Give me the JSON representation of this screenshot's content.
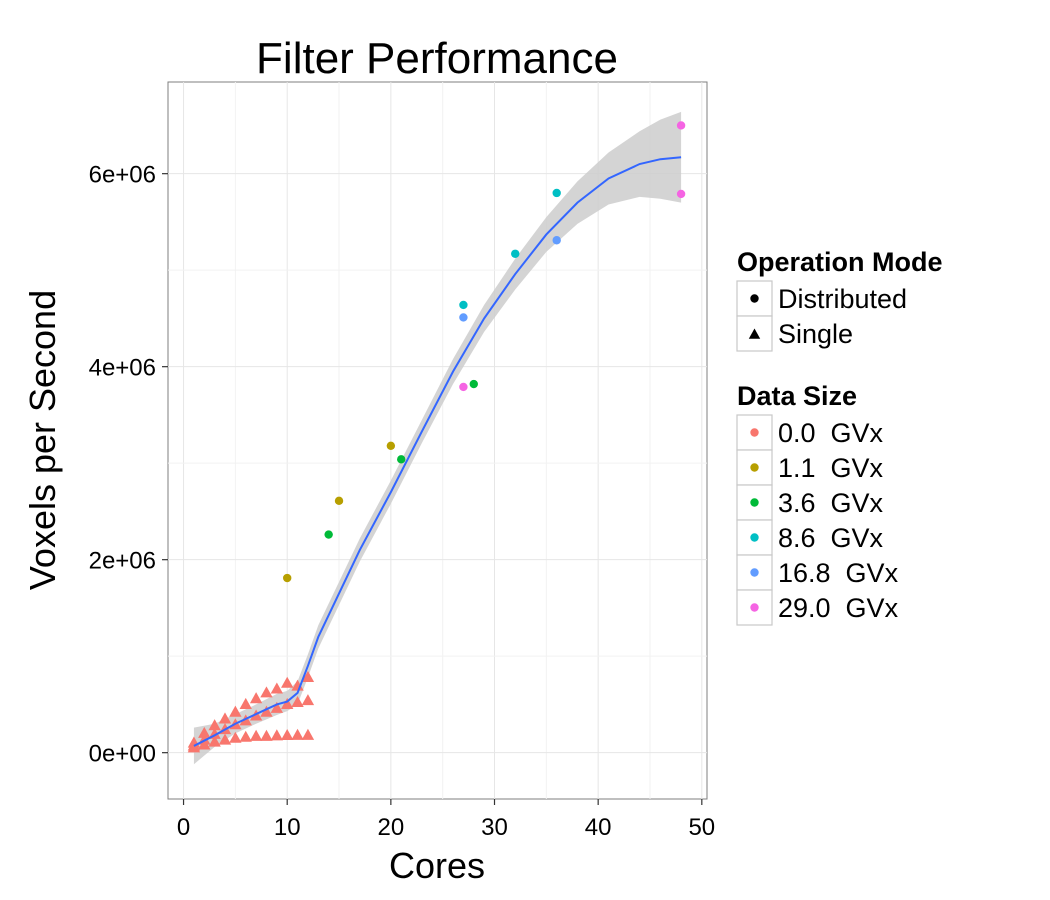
{
  "chart_data": {
    "type": "scatter",
    "title": "Filter Performance",
    "xlabel": "Cores",
    "ylabel": "Voxels per Second",
    "xlim": [
      -1.5,
      50.5
    ],
    "ylim": [
      -480000,
      6950000
    ],
    "x_ticks": [
      0,
      10,
      20,
      30,
      40,
      50
    ],
    "x_tick_labels": [
      "0",
      "10",
      "20",
      "30",
      "40",
      "50"
    ],
    "y_ticks": [
      0,
      2000000,
      4000000,
      6000000
    ],
    "y_tick_labels": [
      "0e+00",
      "2e+06",
      "4e+06",
      "6e+06"
    ],
    "grid": true,
    "legend_position": "right",
    "legends": [
      {
        "title": "Operation Mode",
        "entries": [
          {
            "label": "Distributed",
            "shape": "circle"
          },
          {
            "label": "Single",
            "shape": "triangle"
          }
        ]
      },
      {
        "title": "Data Size",
        "entries": [
          {
            "label": "0.0  GVx",
            "color": "#F8766D"
          },
          {
            "label": "1.1  GVx",
            "color": "#B79F00"
          },
          {
            "label": "3.6  GVx",
            "color": "#00BA38"
          },
          {
            "label": "8.6  GVx",
            "color": "#00BFC4"
          },
          {
            "label": "16.8  GVx",
            "color": "#619CFF"
          },
          {
            "label": "29.0  GVx",
            "color": "#F564E3"
          }
        ]
      }
    ],
    "series": [
      {
        "data_size": "0.0  GVx",
        "mode": "Single",
        "color": "#F8766D",
        "shape": "triangle",
        "points": [
          [
            1,
            50000
          ],
          [
            2,
            80000
          ],
          [
            3,
            110000
          ],
          [
            4,
            130000
          ],
          [
            5,
            150000
          ],
          [
            6,
            160000
          ],
          [
            7,
            170000
          ],
          [
            8,
            170000
          ],
          [
            9,
            175000
          ],
          [
            10,
            178000
          ],
          [
            11,
            180000
          ],
          [
            12,
            180000
          ],
          [
            1,
            70000
          ],
          [
            2,
            130000
          ],
          [
            3,
            190000
          ],
          [
            4,
            240000
          ],
          [
            5,
            290000
          ],
          [
            6,
            330000
          ],
          [
            7,
            380000
          ],
          [
            8,
            420000
          ],
          [
            9,
            460000
          ],
          [
            10,
            500000
          ],
          [
            11,
            520000
          ],
          [
            12,
            540000
          ],
          [
            1,
            100000
          ],
          [
            2,
            200000
          ],
          [
            3,
            280000
          ],
          [
            4,
            350000
          ],
          [
            5,
            420000
          ],
          [
            6,
            500000
          ],
          [
            7,
            560000
          ],
          [
            8,
            620000
          ],
          [
            9,
            660000
          ],
          [
            10,
            720000
          ],
          [
            11,
            690000
          ],
          [
            12,
            780000
          ]
        ]
      },
      {
        "data_size": "1.1  GVx",
        "mode": "Distributed",
        "color": "#B79F00",
        "shape": "circle",
        "points": [
          [
            10,
            1810000
          ],
          [
            15,
            2610000
          ],
          [
            20,
            3180000
          ]
        ]
      },
      {
        "data_size": "3.6  GVx",
        "mode": "Distributed",
        "color": "#00BA38",
        "shape": "circle",
        "points": [
          [
            14,
            2260000
          ],
          [
            21,
            3040000
          ],
          [
            28,
            3820000
          ]
        ]
      },
      {
        "data_size": "8.6  GVx",
        "mode": "Distributed",
        "color": "#00BFC4",
        "shape": "circle",
        "points": [
          [
            27,
            4640000
          ],
          [
            32,
            5170000
          ],
          [
            36,
            5800000
          ]
        ]
      },
      {
        "data_size": "16.8  GVx",
        "mode": "Distributed",
        "color": "#619CFF",
        "shape": "circle",
        "points": [
          [
            27,
            4510000
          ],
          [
            36,
            5310000
          ]
        ]
      },
      {
        "data_size": "29.0  GVx",
        "mode": "Distributed",
        "color": "#F564E3",
        "shape": "circle",
        "points": [
          [
            27,
            3790000
          ],
          [
            48,
            6500000
          ],
          [
            48,
            5790000
          ]
        ]
      }
    ],
    "smooth": {
      "color": "#3366FF",
      "band_color": "#CCCCCC",
      "x": [
        1,
        3,
        5,
        7,
        9,
        10,
        11,
        12,
        13,
        15,
        17,
        20,
        23,
        26,
        29,
        32,
        35,
        38,
        41,
        44,
        46,
        48
      ],
      "y": [
        70000,
        180000,
        300000,
        400000,
        500000,
        530000,
        620000,
        900000,
        1200000,
        1650000,
        2100000,
        2700000,
        3330000,
        3950000,
        4500000,
        4960000,
        5370000,
        5700000,
        5950000,
        6100000,
        6150000,
        6170000
      ],
      "lo": [
        -120000,
        60000,
        200000,
        300000,
        390000,
        430000,
        500000,
        780000,
        1080000,
        1530000,
        1980000,
        2580000,
        3210000,
        3820000,
        4360000,
        4800000,
        5190000,
        5480000,
        5680000,
        5760000,
        5740000,
        5700000
      ],
      "hi": [
        260000,
        300000,
        400000,
        500000,
        610000,
        640000,
        740000,
        1020000,
        1320000,
        1770000,
        2220000,
        2820000,
        3450000,
        4080000,
        4640000,
        5120000,
        5550000,
        5920000,
        6220000,
        6440000,
        6560000,
        6640000
      ]
    }
  }
}
